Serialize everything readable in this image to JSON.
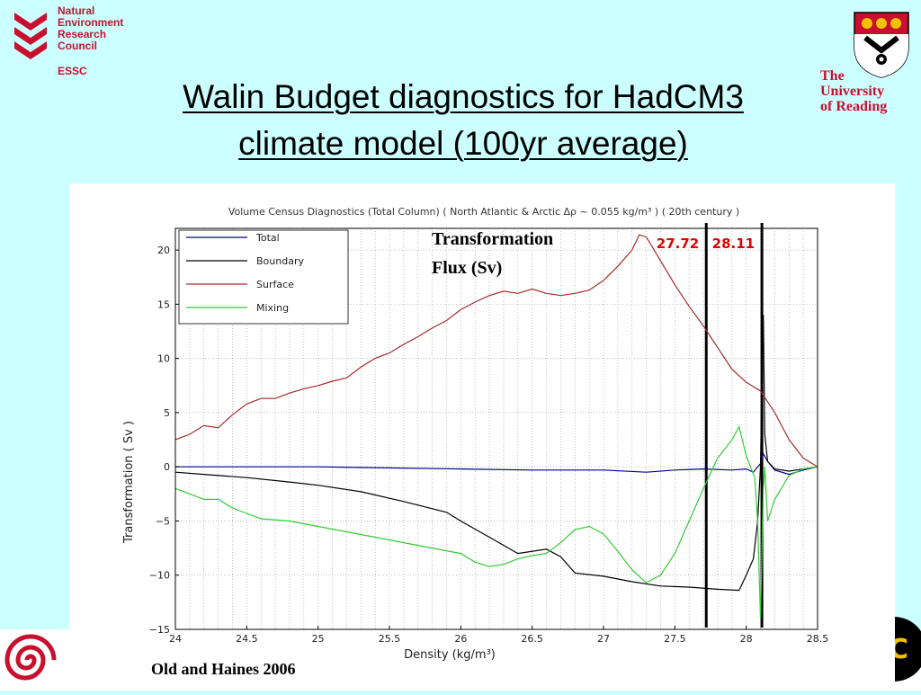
{
  "header": {
    "nerc_lines": [
      "Natural",
      "Environment",
      "Research",
      "Council"
    ],
    "nerc_unit": "ESSC",
    "university_lines": [
      "The",
      "University",
      "of Reading"
    ]
  },
  "slide": {
    "title_line1": "Walin Budget diagnostics for HadCM3",
    "title_line2": "climate model (100yr average)",
    "credit": "Old and Haines 2006"
  },
  "colors": {
    "background": "#ccffff",
    "accent_red": "#c8102e",
    "total": "#00008b",
    "boundary": "#000000",
    "surface": "#a52a2a",
    "mixing": "#33cc33",
    "marker_label": "#e00000"
  },
  "chart_data": {
    "type": "line",
    "title": "Volume Census Diagnostics (Total Column) ( North Atlantic & Arctic   Δρ ~ 0.055 kg/m³ ) ( 20th century )",
    "xlabel": "Density (kg/m³)",
    "ylabel": "Transformation ( Sv )",
    "xlim": [
      24,
      28.5
    ],
    "ylim": [
      -15,
      22
    ],
    "x_ticks": [
      "24",
      "24.5",
      "25",
      "25.5",
      "26",
      "26.5",
      "27",
      "27.5",
      "28",
      "28.5"
    ],
    "x_tick_values": [
      24,
      24.5,
      25,
      25.5,
      26,
      26.5,
      27,
      27.5,
      28,
      28.5
    ],
    "y_ticks": [
      "20",
      "15",
      "10",
      "5",
      "0",
      "−5",
      "−10",
      "−15"
    ],
    "y_tick_values": [
      20,
      15,
      10,
      5,
      0,
      -5,
      -10,
      -15
    ],
    "grid": true,
    "legend_position": "top-left",
    "annotation": [
      "Transformation",
      "Flux (Sv)"
    ],
    "markers": [
      {
        "label": "27.72",
        "x": 27.72
      },
      {
        "label": "28.11",
        "x": 28.11
      }
    ],
    "series": [
      {
        "name": "Total",
        "color": "#00008b",
        "x": [
          24,
          25,
          26,
          26.5,
          27,
          27.3,
          27.5,
          27.7,
          27.9,
          28.0,
          28.05,
          28.1,
          28.12,
          28.15,
          28.2,
          28.3,
          28.4,
          28.5
        ],
        "y": [
          0,
          0,
          -0.2,
          -0.3,
          -0.3,
          -0.5,
          -0.3,
          -0.2,
          -0.3,
          -0.2,
          -0.5,
          0.3,
          1.2,
          0.5,
          -0.3,
          -0.7,
          -0.3,
          0
        ]
      },
      {
        "name": "Boundary",
        "color": "#000000",
        "x": [
          24,
          24.2,
          24.5,
          24.8,
          25,
          25.3,
          25.6,
          25.9,
          26,
          26.2,
          26.4,
          26.6,
          26.7,
          26.8,
          27,
          27.2,
          27.4,
          27.6,
          27.8,
          27.95,
          28.0,
          28.05,
          28.08,
          28.1,
          28.12,
          28.13,
          28.15,
          28.2,
          28.3,
          28.5
        ],
        "y": [
          -0.5,
          -0.7,
          -1.0,
          -1.4,
          -1.7,
          -2.3,
          -3.2,
          -4.2,
          -5.0,
          -6.5,
          -8.0,
          -7.6,
          -8.3,
          -9.8,
          -10.1,
          -10.6,
          -11.0,
          -11.1,
          -11.3,
          -11.4,
          -10.0,
          -8.5,
          -5.0,
          0,
          14.0,
          3.0,
          0.5,
          -0.2,
          -0.4,
          0
        ]
      },
      {
        "name": "Surface",
        "color": "#a52a2a",
        "x": [
          24,
          24.1,
          24.2,
          24.3,
          24.4,
          24.5,
          24.6,
          24.7,
          24.8,
          24.9,
          25,
          25.1,
          25.2,
          25.3,
          25.4,
          25.5,
          25.6,
          25.7,
          25.8,
          25.9,
          26,
          26.1,
          26.2,
          26.3,
          26.4,
          26.5,
          26.6,
          26.7,
          26.8,
          26.9,
          27,
          27.1,
          27.2,
          27.25,
          27.3,
          27.4,
          27.5,
          27.6,
          27.7,
          27.8,
          27.9,
          28.0,
          28.1,
          28.2,
          28.3,
          28.4,
          28.5
        ],
        "y": [
          2.5,
          3.0,
          3.8,
          3.6,
          4.8,
          5.8,
          6.3,
          6.3,
          6.8,
          7.2,
          7.5,
          7.9,
          8.2,
          9.2,
          10.0,
          10.5,
          11.3,
          12.0,
          12.8,
          13.5,
          14.5,
          15.2,
          15.8,
          16.2,
          16.0,
          16.4,
          16.0,
          15.8,
          16.0,
          16.3,
          17.2,
          18.5,
          20.0,
          21.4,
          21.2,
          19.0,
          16.8,
          14.8,
          13.0,
          11.0,
          9.0,
          7.8,
          7.0,
          5.0,
          2.5,
          0.8,
          0
        ]
      },
      {
        "name": "Mixing",
        "color": "#33cc33",
        "x": [
          24,
          24.1,
          24.2,
          24.3,
          24.4,
          24.5,
          24.6,
          24.8,
          25,
          25.2,
          25.4,
          25.6,
          25.8,
          26,
          26.1,
          26.2,
          26.3,
          26.4,
          26.5,
          26.6,
          26.7,
          26.8,
          26.9,
          27,
          27.1,
          27.2,
          27.3,
          27.4,
          27.5,
          27.6,
          27.7,
          27.8,
          27.9,
          27.95,
          28.0,
          28.03,
          28.06,
          28.08,
          28.1,
          28.12,
          28.13,
          28.15,
          28.2,
          28.3,
          28.4,
          28.5
        ],
        "y": [
          -2.0,
          -2.5,
          -3.0,
          -3.0,
          -3.8,
          -4.3,
          -4.8,
          -5.0,
          -5.5,
          -6.0,
          -6.5,
          -7.0,
          -7.5,
          -8.0,
          -8.8,
          -9.2,
          -9.0,
          -8.5,
          -8.2,
          -8.0,
          -7.0,
          -5.8,
          -5.5,
          -6.2,
          -7.8,
          -9.5,
          -10.7,
          -10.0,
          -8.0,
          -5.0,
          -2.0,
          0.8,
          2.5,
          3.7,
          1.0,
          0,
          -1.0,
          -5.0,
          -14.0,
          -2.0,
          0,
          -5.0,
          -3.0,
          -0.8,
          -0.2,
          0
        ]
      }
    ]
  }
}
